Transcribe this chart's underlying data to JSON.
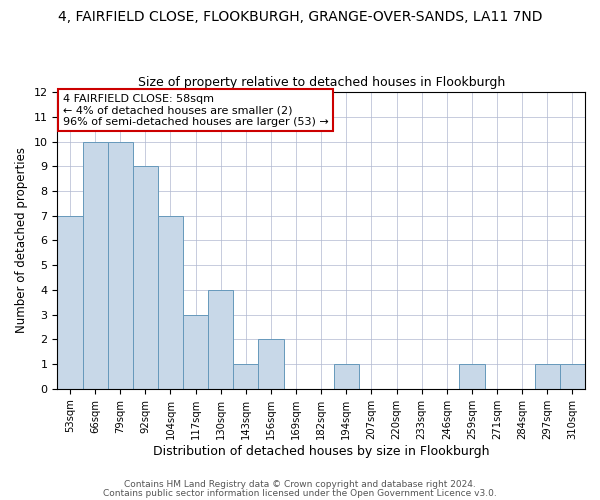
{
  "title": "4, FAIRFIELD CLOSE, FLOOKBURGH, GRANGE-OVER-SANDS, LA11 7ND",
  "subtitle": "Size of property relative to detached houses in Flookburgh",
  "xlabel": "Distribution of detached houses by size in Flookburgh",
  "ylabel": "Number of detached properties",
  "bin_labels": [
    "53sqm",
    "66sqm",
    "79sqm",
    "92sqm",
    "104sqm",
    "117sqm",
    "130sqm",
    "143sqm",
    "156sqm",
    "169sqm",
    "182sqm",
    "194sqm",
    "207sqm",
    "220sqm",
    "233sqm",
    "246sqm",
    "259sqm",
    "271sqm",
    "284sqm",
    "297sqm",
    "310sqm"
  ],
  "bar_heights": [
    7,
    10,
    10,
    9,
    7,
    3,
    4,
    1,
    2,
    0,
    0,
    1,
    0,
    0,
    0,
    0,
    1,
    0,
    0,
    1,
    1
  ],
  "bar_color": "#c8d8e8",
  "bar_edge_color": "#6699bb",
  "ylim": [
    0,
    12
  ],
  "yticks": [
    0,
    1,
    2,
    3,
    4,
    5,
    6,
    7,
    8,
    9,
    10,
    11,
    12
  ],
  "annotation_line1": "4 FAIRFIELD CLOSE: 58sqm",
  "annotation_line2": "← 4% of detached houses are smaller (2)",
  "annotation_line3": "96% of semi-detached houses are larger (53) →",
  "annotation_box_color": "#ffffff",
  "annotation_box_edge_color": "#cc0000",
  "footer_line1": "Contains HM Land Registry data © Crown copyright and database right 2024.",
  "footer_line2": "Contains public sector information licensed under the Open Government Licence v3.0.",
  "grid_color": "#b0b8d0",
  "background_color": "#ffffff",
  "figsize": [
    6.0,
    5.0
  ],
  "dpi": 100
}
